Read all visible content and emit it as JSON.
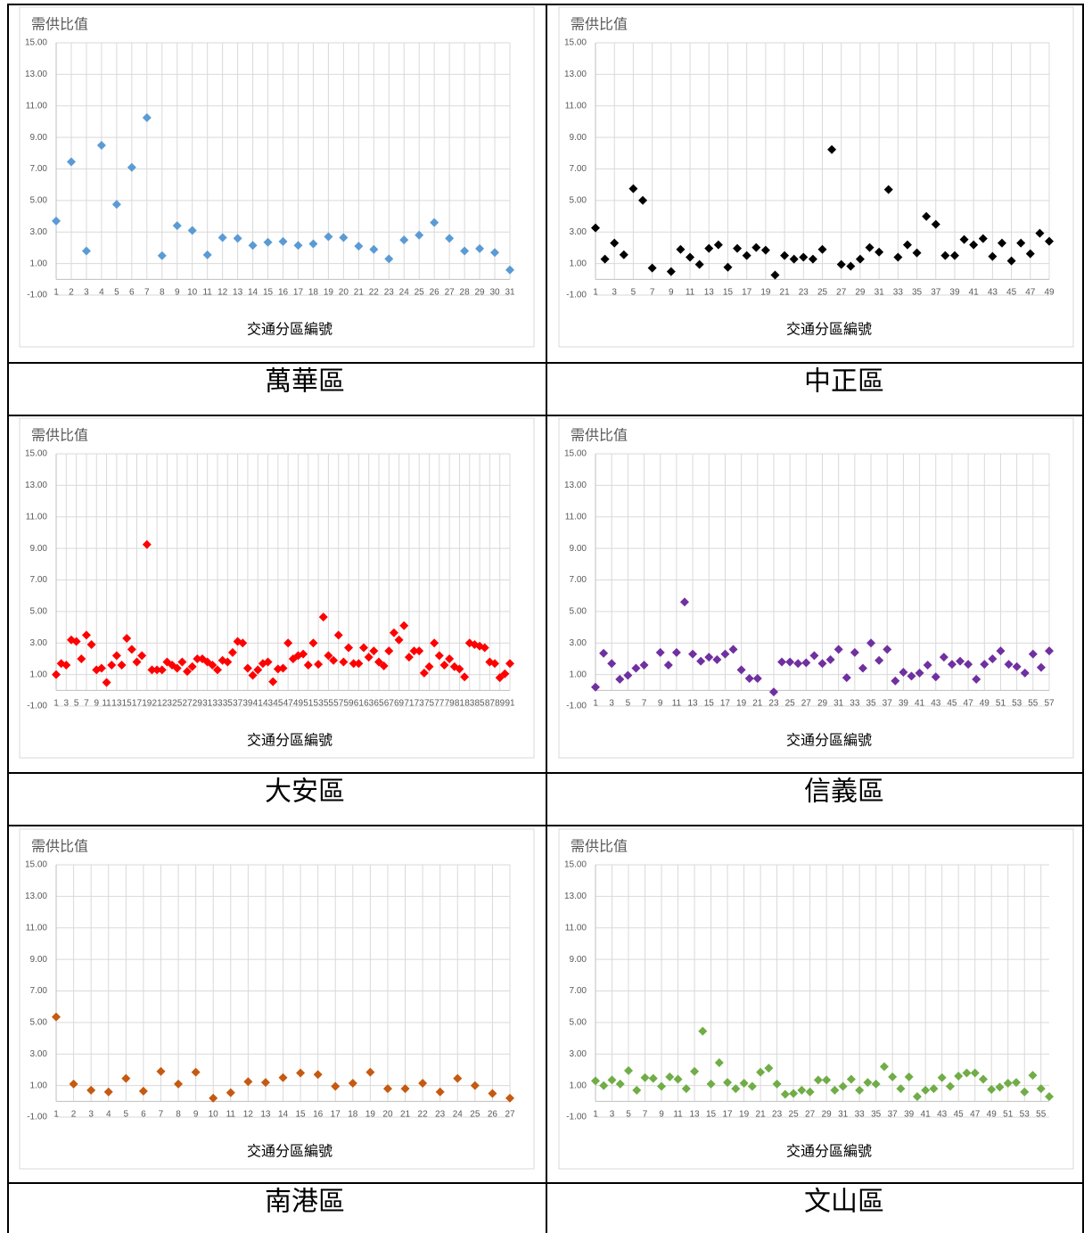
{
  "chart_data": [
    {
      "type": "scatter",
      "title": "需供比值",
      "xlabel": "交通分區編號",
      "color": "#5b9bd5",
      "categories": [
        1,
        2,
        3,
        4,
        5,
        6,
        7,
        8,
        9,
        10,
        11,
        12,
        13,
        14,
        15,
        16,
        17,
        18,
        19,
        20,
        21,
        22,
        23,
        24,
        25,
        26,
        27,
        28,
        29,
        30,
        31
      ],
      "values": [
        3.7,
        7.45,
        1.8,
        8.5,
        4.75,
        7.1,
        10.25,
        1.5,
        3.4,
        3.1,
        1.55,
        2.65,
        2.6,
        2.15,
        2.35,
        2.4,
        2.15,
        2.25,
        2.7,
        2.65,
        2.1,
        1.9,
        1.3,
        2.5,
        2.8,
        3.6,
        2.6,
        1.8,
        1.95,
        1.7,
        0.6
      ],
      "ylim": [
        -1,
        15
      ],
      "yticks": [
        {
          "value": -1,
          "label": "-1.00"
        },
        {
          "value": 1,
          "label": "1.00"
        },
        {
          "value": 3,
          "label": "3.00"
        },
        {
          "value": 5,
          "label": "5.00"
        },
        {
          "value": 7,
          "label": "7.00"
        },
        {
          "value": 9,
          "label": "9.00"
        },
        {
          "value": 11,
          "label": "11.00"
        },
        {
          "value": 13,
          "label": "13.00"
        },
        {
          "value": 15,
          "label": "15.00"
        }
      ],
      "grid": true
    },
    {
      "type": "scatter",
      "title": "需供比值",
      "xlabel": "交通分區編號",
      "color": "#000000",
      "categories": [
        1,
        null,
        3,
        null,
        5,
        null,
        7,
        null,
        9,
        null,
        11,
        null,
        13,
        null,
        15,
        null,
        17,
        null,
        19,
        null,
        21,
        null,
        23,
        null,
        25,
        null,
        27,
        null,
        29,
        null,
        31,
        null,
        33,
        null,
        35,
        null,
        37,
        null,
        39,
        null,
        41,
        null,
        43,
        null,
        45,
        null,
        47,
        null,
        49
      ],
      "values": [
        3.26,
        1.28,
        2.3,
        1.56,
        5.75,
        5.01,
        0.72,
        null,
        0.49,
        1.9,
        1.4,
        0.94,
        1.96,
        2.19,
        0.77,
        1.96,
        1.51,
        2.02,
        1.85,
        0.27,
        1.51,
        1.28,
        1.4,
        1.28,
        1.9,
        8.23,
        0.94,
        0.83,
        1.28,
        2.02,
        1.73,
        5.69,
        1.4,
        2.19,
        1.68,
        3.99,
        3.49,
        1.51,
        1.51,
        2.53,
        2.19,
        2.58,
        1.45,
        2.3,
        1.17,
        2.3,
        1.62,
        2.92,
        2.41
      ],
      "ylim": [
        -1,
        15
      ],
      "yticks": [
        {
          "value": -1,
          "label": "-1.00"
        },
        {
          "value": 1,
          "label": "1.00"
        },
        {
          "value": 3,
          "label": "3.00"
        },
        {
          "value": 5,
          "label": "5.00"
        },
        {
          "value": 7,
          "label": "7.00"
        },
        {
          "value": 9,
          "label": "9.00"
        },
        {
          "value": 11,
          "label": "11.00"
        },
        {
          "value": 13,
          "label": "13.00"
        },
        {
          "value": 15,
          "label": "15.00"
        }
      ],
      "grid": true
    },
    {
      "type": "scatter",
      "title": "需供比值",
      "xlabel": "交通分區編號",
      "color": "#ff0000",
      "categories": [
        1,
        null,
        3,
        null,
        5,
        null,
        7,
        null,
        9,
        null,
        11,
        null,
        13,
        null,
        15,
        null,
        17,
        null,
        19,
        null,
        21,
        null,
        23,
        null,
        25,
        null,
        27,
        null,
        29,
        null,
        31,
        null,
        33,
        null,
        35,
        null,
        37,
        null,
        39,
        null,
        41,
        null,
        43,
        null,
        45,
        null,
        47,
        null,
        49,
        null,
        51,
        null,
        53,
        null,
        55,
        null,
        57,
        null,
        59,
        null,
        61,
        null,
        63,
        null,
        65,
        null,
        67,
        null,
        69,
        null,
        71,
        null,
        73,
        null,
        75,
        null,
        77,
        null,
        79,
        null,
        81,
        null,
        83,
        null,
        85,
        null,
        87,
        null,
        89,
        null,
        91
      ],
      "values": [
        1.0,
        1.7,
        1.6,
        3.2,
        3.1,
        2.0,
        3.5,
        2.9,
        1.3,
        1.4,
        0.5,
        1.6,
        2.2,
        1.6,
        3.3,
        2.6,
        1.8,
        2.2,
        9.25,
        1.3,
        1.3,
        1.3,
        1.8,
        1.6,
        1.4,
        1.8,
        1.2,
        1.5,
        2.0,
        2.0,
        1.8,
        1.6,
        1.3,
        1.9,
        1.8,
        2.4,
        3.1,
        3.0,
        1.4,
        0.95,
        1.3,
        1.7,
        1.8,
        0.55,
        1.35,
        1.4,
        3.0,
        2.0,
        2.2,
        2.3,
        1.6,
        3.0,
        1.65,
        4.65,
        2.2,
        1.9,
        3.5,
        1.8,
        2.7,
        1.7,
        1.7,
        2.7,
        2.1,
        2.5,
        1.8,
        1.55,
        2.5,
        3.65,
        3.2,
        4.1,
        2.1,
        2.5,
        2.5,
        1.1,
        1.5,
        3.0,
        2.2,
        1.6,
        2.0,
        1.5,
        1.35,
        0.85,
        3.0,
        2.9,
        2.8,
        2.7,
        1.8,
        1.7,
        0.8,
        1.05,
        1.7
      ],
      "ylim": [
        -1,
        15
      ],
      "yticks": [
        {
          "value": -1,
          "label": "-1.00"
        },
        {
          "value": 1,
          "label": "1.00"
        },
        {
          "value": 3,
          "label": "3.00"
        },
        {
          "value": 5,
          "label": "5.00"
        },
        {
          "value": 7,
          "label": "7.00"
        },
        {
          "value": 9,
          "label": "9.00"
        },
        {
          "value": 11,
          "label": "11.00"
        },
        {
          "value": 13,
          "label": "13.00"
        },
        {
          "value": 15,
          "label": "15.00"
        }
      ],
      "grid": true
    },
    {
      "type": "scatter",
      "title": "需供比值",
      "xlabel": "交通分區編號",
      "color": "#7030a0",
      "categories": [
        1,
        null,
        3,
        null,
        5,
        null,
        7,
        null,
        9,
        null,
        11,
        null,
        13,
        null,
        15,
        null,
        17,
        null,
        19,
        null,
        21,
        null,
        23,
        null,
        25,
        null,
        27,
        null,
        29,
        null,
        31,
        null,
        33,
        null,
        35,
        null,
        37,
        null,
        39,
        null,
        41,
        null,
        43,
        null,
        45,
        null,
        47,
        null,
        49,
        null,
        51,
        null,
        53,
        null,
        55,
        null,
        57
      ],
      "values": [
        0.2,
        2.35,
        1.7,
        0.7,
        0.95,
        1.4,
        1.6,
        null,
        2.4,
        1.6,
        2.4,
        5.6,
        2.3,
        1.85,
        2.1,
        1.95,
        2.3,
        2.6,
        1.3,
        0.75,
        0.75,
        null,
        -0.1,
        1.8,
        1.8,
        1.7,
        1.75,
        2.2,
        1.7,
        1.95,
        2.6,
        0.8,
        2.4,
        1.4,
        3.0,
        1.9,
        2.6,
        0.6,
        1.15,
        0.9,
        1.1,
        1.6,
        0.85,
        2.1,
        1.65,
        1.85,
        1.65,
        0.7,
        1.65,
        2.0,
        2.5,
        1.65,
        1.5,
        1.1,
        2.3,
        1.45,
        2.5
      ],
      "ylim": [
        -1,
        15
      ],
      "yticks": [
        {
          "value": -1,
          "label": "-1.00"
        },
        {
          "value": 1,
          "label": "1.00"
        },
        {
          "value": 3,
          "label": "3.00"
        },
        {
          "value": 5,
          "label": "5.00"
        },
        {
          "value": 7,
          "label": "7.00"
        },
        {
          "value": 9,
          "label": "9.00"
        },
        {
          "value": 11,
          "label": "11.00"
        },
        {
          "value": 13,
          "label": "13.00"
        },
        {
          "value": 15,
          "label": "15.00"
        }
      ],
      "grid": true
    },
    {
      "type": "scatter",
      "title": "需供比值",
      "xlabel": "交通分區編號",
      "color": "#c55a11",
      "categories": [
        1,
        2,
        3,
        4,
        5,
        6,
        7,
        8,
        9,
        10,
        11,
        12,
        13,
        14,
        15,
        16,
        17,
        18,
        19,
        20,
        21,
        22,
        23,
        24,
        25,
        26,
        27
      ],
      "values": [
        5.35,
        1.1,
        0.7,
        0.6,
        1.45,
        0.65,
        1.9,
        1.1,
        1.85,
        0.2,
        0.55,
        1.25,
        1.2,
        1.5,
        1.8,
        1.7,
        0.95,
        1.15,
        1.85,
        0.8,
        0.8,
        1.15,
        0.6,
        1.45,
        1.0,
        0.5,
        0.2
      ],
      "ylim": [
        -1,
        15
      ],
      "yticks": [
        {
          "value": -1,
          "label": "-1.00"
        },
        {
          "value": 1,
          "label": "1.00"
        },
        {
          "value": 3,
          "label": "3.00"
        },
        {
          "value": 5,
          "label": "5.00"
        },
        {
          "value": 7,
          "label": "7.00"
        },
        {
          "value": 9,
          "label": "9.00"
        },
        {
          "value": 11,
          "label": "11.00"
        },
        {
          "value": 13,
          "label": "13.00"
        },
        {
          "value": 15,
          "label": "15.00"
        }
      ],
      "grid": true
    },
    {
      "type": "scatter",
      "title": "需供比值",
      "xlabel": "交通分區編號",
      "color": "#70ad47",
      "categories": [
        1,
        null,
        3,
        null,
        5,
        null,
        7,
        null,
        9,
        null,
        11,
        null,
        13,
        null,
        15,
        null,
        17,
        null,
        19,
        null,
        21,
        null,
        23,
        null,
        25,
        null,
        27,
        null,
        29,
        null,
        31,
        null,
        33,
        null,
        35,
        null,
        37,
        null,
        39,
        null,
        41,
        null,
        43,
        null,
        45,
        null,
        47,
        null,
        49,
        null,
        51,
        null,
        53,
        null,
        55,
        null
      ],
      "values": [
        1.3,
        1.0,
        1.35,
        1.1,
        1.95,
        0.7,
        1.5,
        1.45,
        0.95,
        1.55,
        1.4,
        0.8,
        1.9,
        4.45,
        1.1,
        2.45,
        1.2,
        0.8,
        1.15,
        0.95,
        1.85,
        2.1,
        1.1,
        0.45,
        0.5,
        0.7,
        0.6,
        1.35,
        1.35,
        0.7,
        0.95,
        1.4,
        0.7,
        1.2,
        1.1,
        2.2,
        1.55,
        0.8,
        1.55,
        0.3,
        0.7,
        0.8,
        1.5,
        0.95,
        1.6,
        1.8,
        1.8,
        1.4,
        0.75,
        0.9,
        1.15,
        1.2,
        0.6,
        1.65,
        0.8,
        0.3
      ],
      "ylim": [
        -1,
        15
      ],
      "yticks": [
        {
          "value": -1,
          "label": "-1.00"
        },
        {
          "value": 1,
          "label": "1.00"
        },
        {
          "value": 3,
          "label": "3.00"
        },
        {
          "value": 5,
          "label": "5.00"
        },
        {
          "value": 7,
          "label": "7.00"
        },
        {
          "value": 9,
          "label": "9.00"
        },
        {
          "value": 11,
          "label": "11.00"
        },
        {
          "value": 13,
          "label": "13.00"
        },
        {
          "value": 15,
          "label": "15.00"
        }
      ],
      "grid": true
    }
  ],
  "districts": [
    "萬華區",
    "中正區",
    "大安區",
    "信義區",
    "南港區",
    "文山區"
  ]
}
